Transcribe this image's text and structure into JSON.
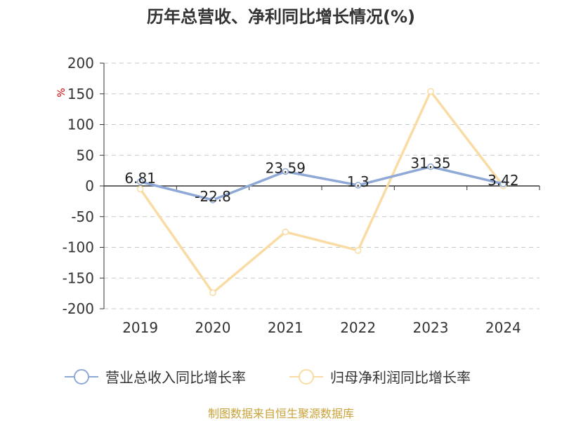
{
  "chart_data": {
    "type": "line",
    "title": "历年总营收、净利同比增长情况(%)",
    "ylabel": "%",
    "xlabel": "",
    "categories": [
      "2019",
      "2020",
      "2021",
      "2022",
      "2023",
      "2024"
    ],
    "ylim": [
      -200,
      200
    ],
    "yticks": [
      200,
      150,
      100,
      50,
      0,
      -50,
      -100,
      -150,
      -200
    ],
    "grid": true,
    "legend_position": "bottom",
    "series": [
      {
        "name": "营业总收入同比增长率",
        "color": "#8fa9d6",
        "values": [
          6.81,
          -22.8,
          23.59,
          1.3,
          31.35,
          3.42
        ],
        "data_labels": [
          "6.81",
          "-22.8",
          "23.59",
          "1.3",
          "31.35",
          "3.42"
        ]
      },
      {
        "name": "归母净利润同比增长率",
        "color": "#f8dca4",
        "values": [
          -5,
          -174,
          -75,
          -105,
          154,
          0
        ]
      }
    ]
  },
  "source_text": "制图数据来自恒生聚源数据库"
}
